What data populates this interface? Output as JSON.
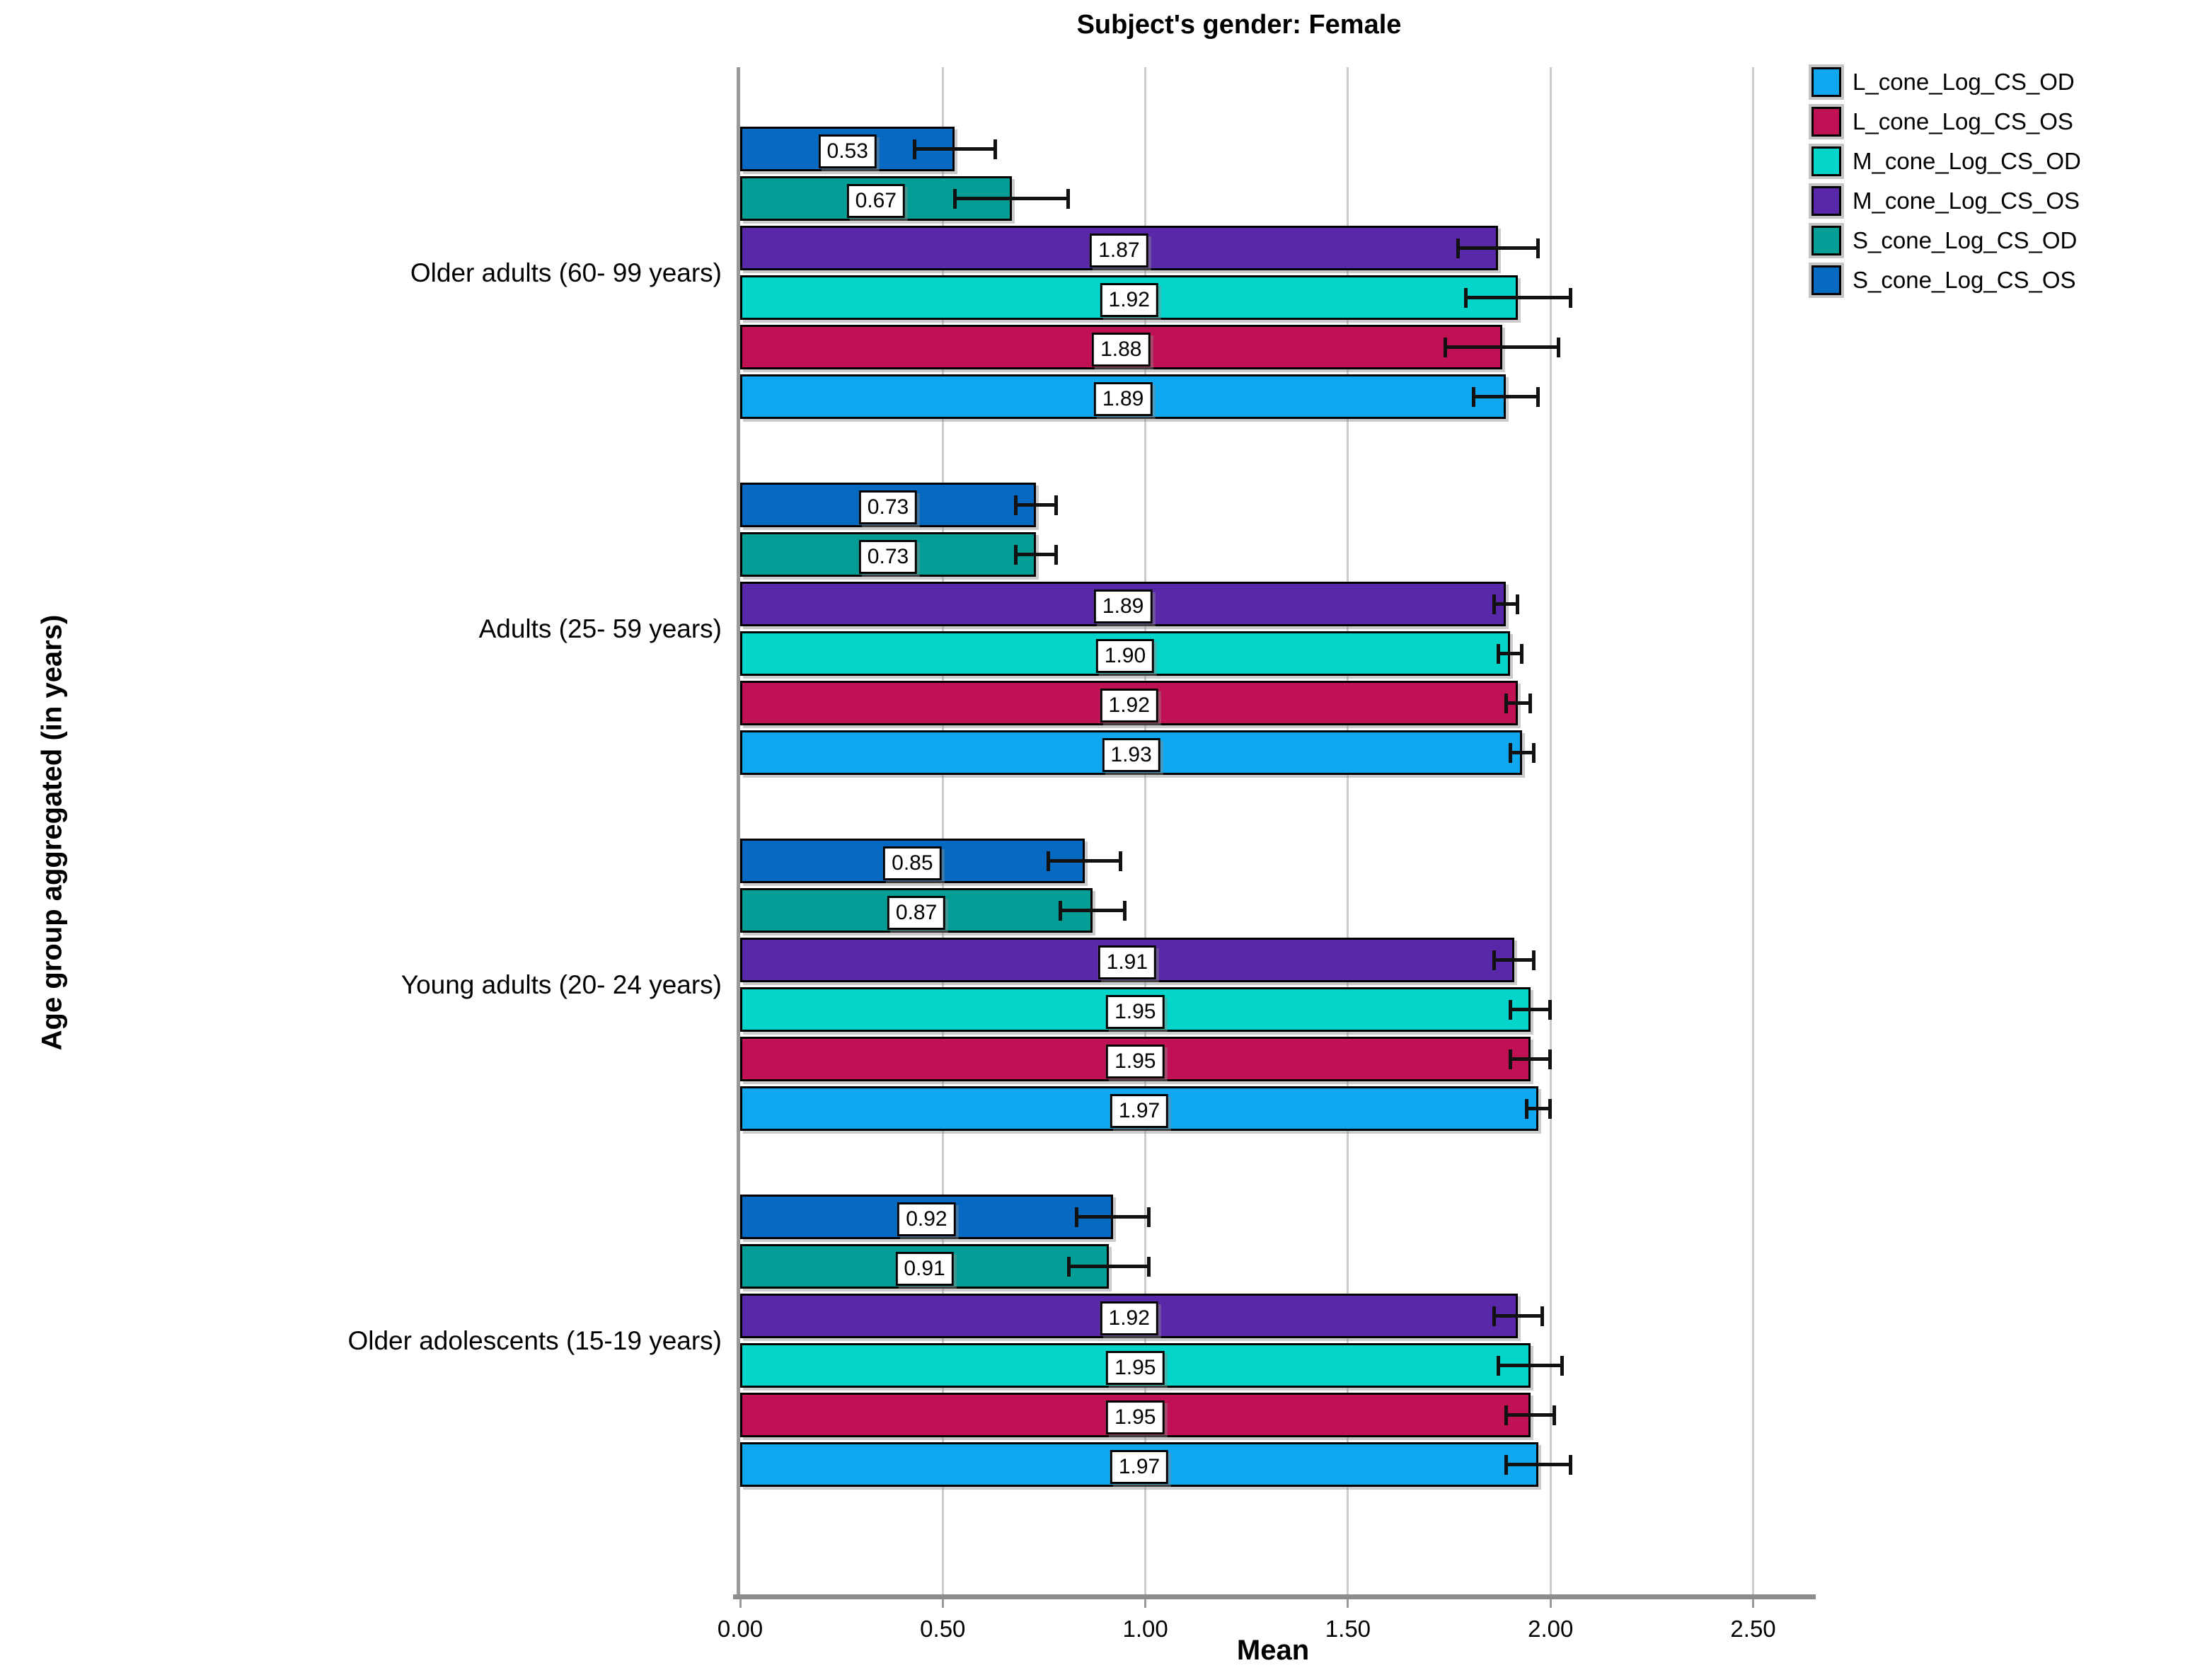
{
  "title": "Subject's gender: Female",
  "x_axis": {
    "label": "Mean",
    "ticks": [
      "0.00",
      "0.50",
      "1.00",
      "1.50",
      "2.00",
      "2.50"
    ]
  },
  "y_axis": {
    "label": "Age group aggregated (in years)"
  },
  "legend": [
    {
      "name": "L_cone_Log_CS_OD",
      "color": "#0FA7F0"
    },
    {
      "name": "L_cone_Log_CS_OS",
      "color": "#C11155"
    },
    {
      "name": "M_cone_Log_CS_OD",
      "color": "#04D5CB"
    },
    {
      "name": "M_cone_Log_CS_OS",
      "color": "#5928A8"
    },
    {
      "name": "S_cone_Log_CS_OD",
      "color": "#029E95"
    },
    {
      "name": "S_cone_Log_CS_OS",
      "color": "#0569C2"
    }
  ],
  "chart_data": {
    "type": "bar",
    "orientation": "horizontal",
    "title": "Subject's gender: Female",
    "xlabel": "Mean",
    "ylabel": "Age group aggregated (in years)",
    "xlim": [
      0,
      2.63
    ],
    "xticks": [
      0.0,
      0.5,
      1.0,
      1.5,
      2.0,
      2.5
    ],
    "grid": true,
    "legend_position": "top-right",
    "error_bars": true,
    "categories": [
      "Older adults (60- 99 years)",
      "Adults (25- 59 years)",
      "Young adults (20- 24 years)",
      "Older adolescents (15-19 years)"
    ],
    "bar_order_top_to_bottom": [
      "S_cone_Log_CS_OS",
      "S_cone_Log_CS_OD",
      "M_cone_Log_CS_OS",
      "M_cone_Log_CS_OD",
      "L_cone_Log_CS_OS",
      "L_cone_Log_CS_OD"
    ],
    "series": [
      {
        "name": "L_cone_Log_CS_OD",
        "color": "#0FA7F0",
        "values": [
          1.89,
          1.93,
          1.97,
          1.97
        ],
        "labels": [
          "1.89",
          "1.93",
          "1.97",
          "1.97"
        ],
        "ci": [
          0.08,
          0.03,
          0.03,
          0.08
        ]
      },
      {
        "name": "L_cone_Log_CS_OS",
        "color": "#C11155",
        "values": [
          1.88,
          1.92,
          1.95,
          1.95
        ],
        "labels": [
          "1.88",
          "1.92",
          "1.95",
          "1.95"
        ],
        "ci": [
          0.14,
          0.03,
          0.05,
          0.06
        ]
      },
      {
        "name": "M_cone_Log_CS_OD",
        "color": "#04D5CB",
        "values": [
          1.92,
          1.9,
          1.95,
          1.95
        ],
        "labels": [
          "1.92",
          "1.90",
          "1.95",
          "1.95"
        ],
        "ci": [
          0.13,
          0.03,
          0.05,
          0.08
        ]
      },
      {
        "name": "M_cone_Log_CS_OS",
        "color": "#5928A8",
        "values": [
          1.87,
          1.89,
          1.91,
          1.92
        ],
        "labels": [
          "1.87",
          "1.89",
          "1.91",
          "1.92"
        ],
        "ci": [
          0.1,
          0.03,
          0.05,
          0.06
        ]
      },
      {
        "name": "S_cone_Log_CS_OD",
        "color": "#029E95",
        "values": [
          0.67,
          0.73,
          0.87,
          0.91
        ],
        "labels": [
          "0.67",
          "0.73",
          "0.87",
          "0.91"
        ],
        "ci": [
          0.14,
          0.05,
          0.08,
          0.1
        ]
      },
      {
        "name": "S_cone_Log_CS_OS",
        "color": "#0569C2",
        "values": [
          0.53,
          0.73,
          0.85,
          0.92
        ],
        "labels": [
          "0.53",
          "0.73",
          "0.85",
          "0.92"
        ],
        "ci": [
          0.1,
          0.05,
          0.09,
          0.09
        ]
      }
    ]
  }
}
